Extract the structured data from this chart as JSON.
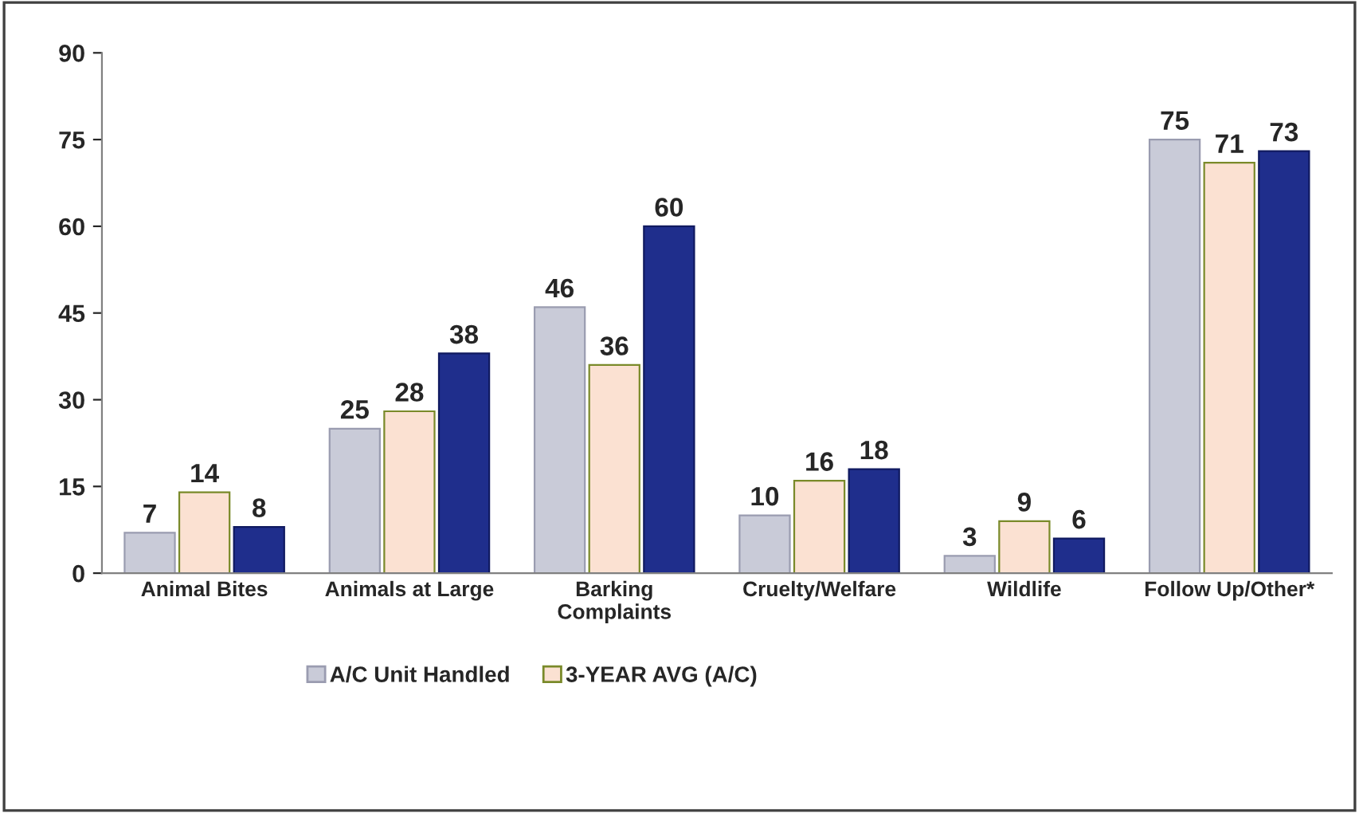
{
  "chart_data": {
    "type": "bar",
    "categories": [
      "Animal Bites",
      "Animals at Large",
      "Barking\nComplaints",
      "Cruelty/Welfare",
      "Wildlife",
      "Follow Up/Other*"
    ],
    "series": [
      {
        "name": "A/C Unit Handled",
        "color": "#c9cbd8",
        "values": [
          7,
          25,
          46,
          10,
          3,
          75
        ]
      },
      {
        "name": "3-YEAR AVG (A/C)",
        "color": "#fbe1d2",
        "values": [
          14,
          28,
          36,
          16,
          9,
          71
        ]
      },
      {
        "color": "#1f2e8c",
        "values": [
          8,
          38,
          60,
          18,
          6,
          73
        ]
      }
    ],
    "ylim": [
      0,
      90
    ],
    "yticks": [
      0,
      15,
      30,
      45,
      60,
      75,
      90
    ],
    "data_labels": true,
    "grid": false,
    "legend": "bottom"
  }
}
